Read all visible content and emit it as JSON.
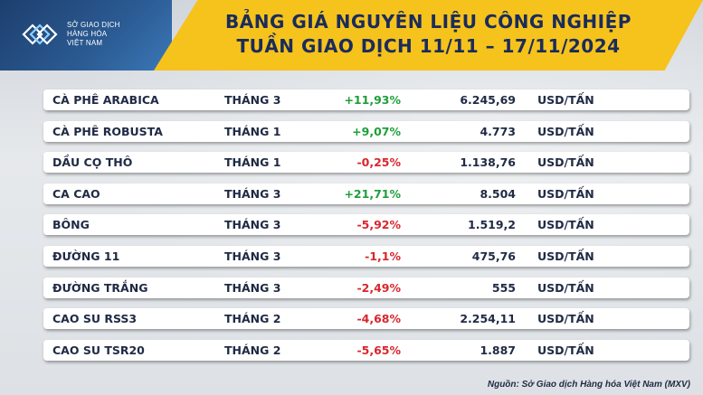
{
  "header": {
    "logo_lines": [
      "SỞ GIAO DỊCH",
      "HÀNG HÓA",
      "VIỆT NAM"
    ],
    "title_line1": "BẢNG GIÁ NGUYÊN LIỆU CÔNG NGHIỆP",
    "title_line2": "TUẦN GIAO DỊCH 11/11 – 17/11/2024"
  },
  "rows": [
    {
      "name": "CÀ PHÊ ARABICA",
      "month": "THÁNG 3",
      "change": "+11,93%",
      "direction": "up",
      "price": "6.245,69",
      "unit": "USD/TẤN"
    },
    {
      "name": "CÀ PHÊ ROBUSTA",
      "month": "THÁNG 1",
      "change": "+9,07%",
      "direction": "up",
      "price": "4.773",
      "unit": "USD/TẤN"
    },
    {
      "name": "DẦU CỌ THÔ",
      "month": "THÁNG 1",
      "change": "-0,25%",
      "direction": "down",
      "price": "1.138,76",
      "unit": "USD/TẤN"
    },
    {
      "name": "CA CAO",
      "month": "THÁNG 3",
      "change": "+21,71%",
      "direction": "up",
      "price": "8.504",
      "unit": "USD/TẤN"
    },
    {
      "name": "BÔNG",
      "month": "THÁNG 3",
      "change": "-5,92%",
      "direction": "down",
      "price": "1.519,2",
      "unit": "USD/TẤN"
    },
    {
      "name": "ĐƯỜNG 11",
      "month": "THÁNG 3",
      "change": "-1,1%",
      "direction": "down",
      "price": "475,76",
      "unit": "USD/TẤN"
    },
    {
      "name": "ĐƯỜNG TRẮNG",
      "month": "THÁNG 3",
      "change": "-2,49%",
      "direction": "down",
      "price": "555",
      "unit": "USD/TẤN"
    },
    {
      "name": "CAO SU RSS3",
      "month": "THÁNG 2",
      "change": "-4,68%",
      "direction": "down",
      "price": "2.254,11",
      "unit": "USD/TẤN"
    },
    {
      "name": "CAO SU TSR20",
      "month": "THÁNG 2",
      "change": "-5,65%",
      "direction": "down",
      "price": "1.887",
      "unit": "USD/TẤN"
    }
  ],
  "source": "Nguồn: Sở Giao dịch Hàng hóa Việt Nam (MXV)",
  "colors": {
    "up": "#1f9e3a",
    "down": "#d9262c",
    "band": "#f6c21c",
    "title": "#1a2c5b"
  }
}
